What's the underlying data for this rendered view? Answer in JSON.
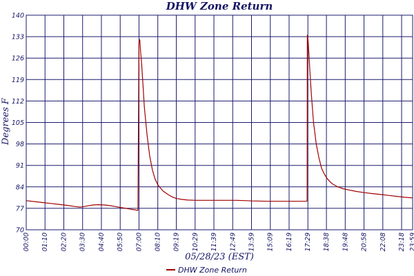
{
  "chart_data": {
    "type": "line",
    "title": "DHW Zone Return",
    "xlabel": "05/28/23 (EST)",
    "ylabel": "Degrees F",
    "ylim": [
      70,
      140
    ],
    "y_ticks": [
      70,
      77,
      84,
      91,
      98,
      105,
      112,
      119,
      126,
      133,
      140
    ],
    "xlim_minutes": [
      0,
      1439
    ],
    "x_ticks": [
      "00:00",
      "01:10",
      "02:20",
      "03:30",
      "04:40",
      "05:50",
      "07:00",
      "08:10",
      "09:19",
      "10:29",
      "11:39",
      "12:49",
      "13:59",
      "15:09",
      "16:19",
      "17:29",
      "18:38",
      "19:48",
      "20:58",
      "22:08",
      "23:18",
      "23:59"
    ],
    "grid": true,
    "legend_position": "bottom-center",
    "line_color": "#a00000",
    "grid_color": "#1a1a6e",
    "series": [
      {
        "name": "DHW Zone Return",
        "x": [
          "00:00",
          "00:30",
          "01:00",
          "01:30",
          "02:00",
          "02:30",
          "03:00",
          "03:20",
          "03:30",
          "03:50",
          "04:10",
          "04:30",
          "04:50",
          "05:10",
          "05:30",
          "05:50",
          "06:10",
          "06:30",
          "06:45",
          "06:55",
          "06:56",
          "07:00",
          "07:03",
          "07:06",
          "07:10",
          "07:15",
          "07:20",
          "07:30",
          "07:40",
          "07:50",
          "08:00",
          "08:10",
          "08:20",
          "08:30",
          "08:40",
          "08:50",
          "09:00",
          "09:10",
          "09:20",
          "09:40",
          "10:00",
          "10:30",
          "11:00",
          "12:00",
          "13:00",
          "13:40",
          "14:00",
          "15:00",
          "16:00",
          "16:30",
          "17:00",
          "17:25",
          "17:26",
          "17:27",
          "17:30",
          "17:33",
          "17:37",
          "17:42",
          "17:50",
          "18:00",
          "18:10",
          "18:20",
          "18:30",
          "18:40",
          "18:50",
          "19:00",
          "19:10",
          "19:20",
          "19:30",
          "19:40",
          "20:00",
          "20:30",
          "21:00",
          "21:30",
          "22:00",
          "22:30",
          "23:00",
          "23:30",
          "23:59"
        ],
        "values": [
          79.5,
          79.2,
          78.9,
          78.6,
          78.3,
          78.0,
          77.6,
          77.4,
          77.5,
          77.8,
          78.1,
          78.2,
          78.1,
          77.9,
          77.6,
          77.3,
          77.0,
          76.7,
          76.5,
          76.3,
          76.4,
          131.0,
          132.0,
          128.0,
          124.0,
          117.0,
          110.0,
          101.0,
          94.0,
          89.5,
          86.5,
          84.7,
          83.6,
          82.6,
          82.0,
          81.4,
          80.9,
          80.5,
          80.2,
          79.9,
          79.7,
          79.6,
          79.6,
          79.6,
          79.6,
          79.5,
          79.4,
          79.3,
          79.3,
          79.3,
          79.3,
          79.3,
          79.5,
          133.5,
          131.5,
          127.0,
          121.0,
          114.0,
          105.0,
          98.0,
          93.5,
          90.0,
          88.2,
          86.8,
          85.8,
          85.0,
          84.5,
          84.0,
          83.7,
          83.4,
          83.0,
          82.5,
          82.1,
          81.8,
          81.5,
          81.2,
          80.9,
          80.6,
          80.4
        ]
      }
    ]
  }
}
